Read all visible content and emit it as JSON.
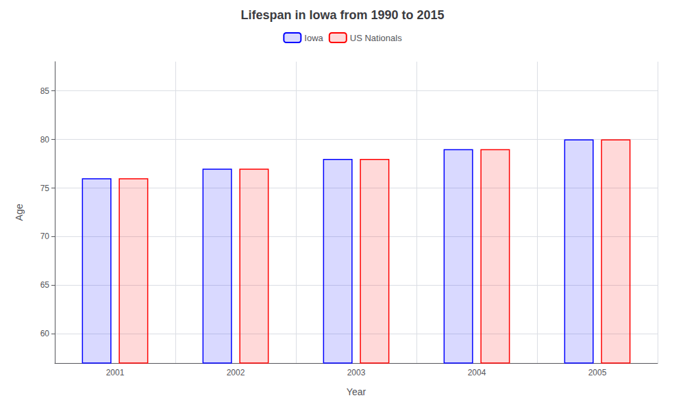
{
  "chart_data": {
    "type": "bar",
    "title": "Lifespan in Iowa from 1990 to 2015",
    "xlabel": "Year",
    "ylabel": "Age",
    "categories": [
      "2001",
      "2002",
      "2003",
      "2004",
      "2005"
    ],
    "series": [
      {
        "name": "Iowa",
        "color": "#0000ff",
        "values": [
          76,
          77,
          78,
          79,
          80
        ]
      },
      {
        "name": "US Nationals",
        "color": "#ff0000",
        "values": [
          76,
          77,
          78,
          79,
          80
        ]
      }
    ],
    "ylim": [
      57,
      88
    ],
    "yticks": [
      60,
      65,
      70,
      75,
      80,
      85
    ],
    "grid": true,
    "legend": "top"
  }
}
